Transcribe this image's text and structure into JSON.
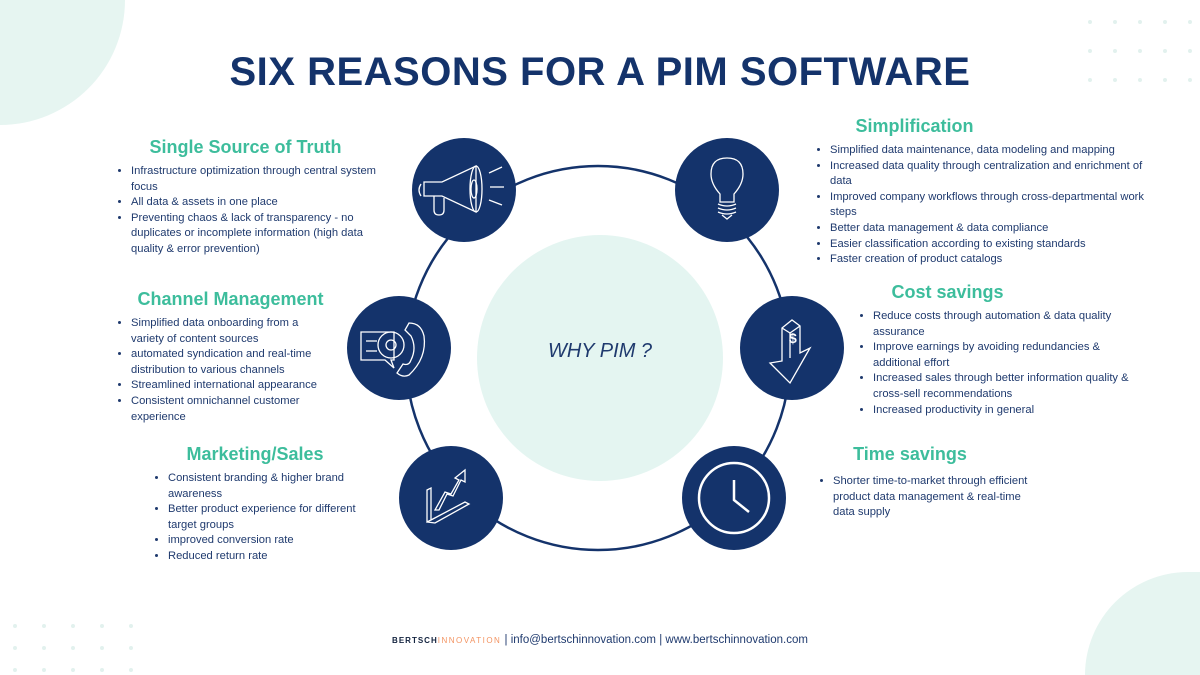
{
  "title": "SIX REASONS FOR A PIM SOFTWARE",
  "center_label": "WHY PIM ?",
  "colors": {
    "navy": "#14336b",
    "teal": "#3dbd9c",
    "light_teal": "#e4f5f1",
    "text": "#1f3a6e",
    "brand_orange": "#f39361"
  },
  "sections": {
    "single_source": {
      "heading": "Single Source of Truth",
      "icon": "megaphone-icon",
      "items": [
        "Infrastructure optimization through central system focus",
        "All data & assets in one place",
        "Preventing chaos & lack of transparency - no duplicates or incomplete information (high data quality & error prevention)"
      ]
    },
    "channel": {
      "heading": "Channel Management",
      "icon": "email-phone-icon",
      "items": [
        "Simplified data onboarding from a variety of content sources",
        "automated syndication and real-time distribution to various channels",
        "Streamlined international appearance",
        "Consistent omnichannel customer experience"
      ]
    },
    "marketing": {
      "heading": "Marketing/Sales",
      "icon": "growth-chart-icon",
      "items": [
        "Consistent branding & higher brand awareness",
        "Better product experience for different target groups",
        "improved conversion rate",
        "Reduced return rate"
      ]
    },
    "simplification": {
      "heading": "Simplification",
      "icon": "lightbulb-icon",
      "items": [
        "Simplified data maintenance, data modeling and mapping",
        "Increased data quality through centralization and enrichment of data",
        "Improved company workflows through cross-departmental work steps",
        "Better data management & data compliance",
        "Easier classification according to existing standards",
        "Faster creation of product catalogs"
      ]
    },
    "cost": {
      "heading": "Cost savings",
      "icon": "dollar-down-arrow-icon",
      "items": [
        "Reduce costs through automation & data quality assurance",
        "Improve earnings by avoiding redundancies & additional effort",
        "Increased sales through better information quality & cross-sell recommendations",
        "Increased productivity in general"
      ]
    },
    "time": {
      "heading": "Time savings",
      "icon": "clock-icon",
      "items": [
        "Shorter time-to-market through efficient product data management & real-time data supply"
      ]
    }
  },
  "footer": {
    "brand_part1": "BERTSCH",
    "brand_part2": "INNOVATION",
    "email": "info@bertschinnovation.com",
    "website": "www.bertschinnovation.com",
    "separator": "|"
  }
}
